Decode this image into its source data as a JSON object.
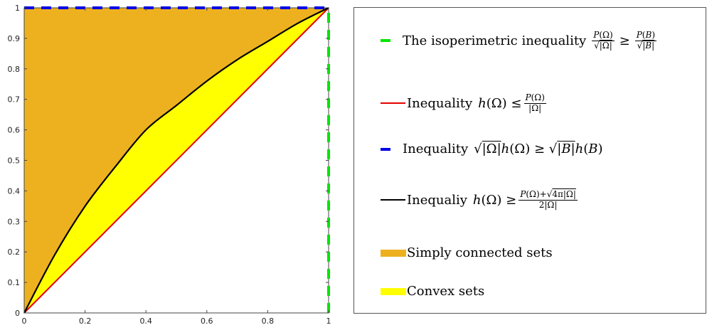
{
  "chart_data": {
    "type": "area",
    "xlim": [
      0,
      1
    ],
    "ylim": [
      0,
      1
    ],
    "x_ticks": [
      "0",
      "0.2",
      "0.4",
      "0.6",
      "0.8",
      "1"
    ],
    "y_ticks": [
      "0",
      "0.1",
      "0.2",
      "0.3",
      "0.4",
      "0.5",
      "0.6",
      "0.7",
      "0.8",
      "0.9",
      "1"
    ],
    "grid": false,
    "legend_position": "right",
    "series": [
      {
        "key": "isoperimetric",
        "type": "line",
        "style": "dashed",
        "color": "#00e600",
        "x": [
          1,
          1
        ],
        "y": [
          0,
          1
        ]
      },
      {
        "key": "red",
        "type": "line",
        "style": "solid",
        "color": "#e60000",
        "x": [
          0,
          1
        ],
        "y": [
          0,
          1
        ]
      },
      {
        "key": "blue",
        "type": "line",
        "style": "dashed",
        "color": "#0000e6",
        "x": [
          0,
          1
        ],
        "y": [
          1,
          1
        ]
      },
      {
        "key": "black",
        "type": "line",
        "style": "solid",
        "color": "#000000",
        "x": [
          0,
          0.1,
          0.2,
          0.3,
          0.4,
          0.5,
          0.6,
          0.7,
          0.8,
          0.9,
          1.0
        ],
        "y": [
          0,
          0.19,
          0.35,
          0.48,
          0.6,
          0.68,
          0.76,
          0.83,
          0.89,
          0.95,
          1.0
        ]
      },
      {
        "key": "simply_connected",
        "type": "area",
        "color": "#edb120",
        "description": "region between black curve and y = 1"
      },
      {
        "key": "convex",
        "type": "area",
        "color": "#ffff00",
        "description": "region between red line and black curve"
      }
    ]
  },
  "legend": {
    "isoperimetric_label": "The isoperimetric inequality",
    "red_label": "Inequality",
    "blue_label": "Inequality",
    "black_label": "Inequaliy",
    "simply_label": "Simply connected sets",
    "convex_label": "Convex sets"
  }
}
